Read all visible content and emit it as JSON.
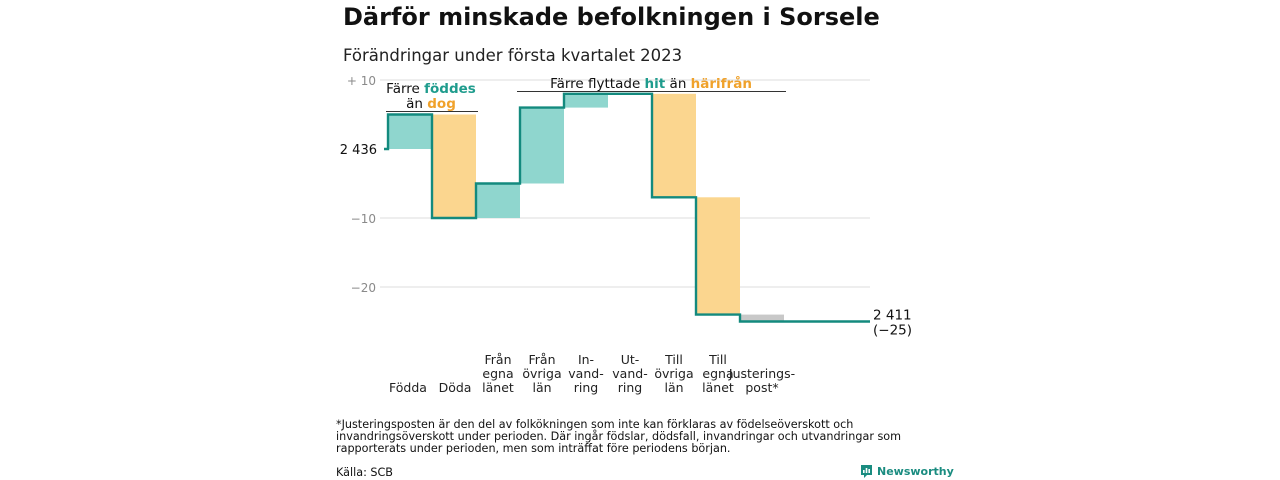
{
  "title": "Därför minskade befolkningen i Sorsele",
  "subtitle": "Förändringar under första kvartalet 2023",
  "footnote": "*Justeringsposten är den del av folkökningen som inte kan förklaras av födelseöverskott och invandringsöverskott under perioden. Där ingår födslar, dödsfall, invandringar och utvandringar som rapporterats under perioden, men som inträffat före periodens början.",
  "source": "Källa: SCB",
  "brand": "Newsworthy",
  "colors": {
    "positive": "#8fd6ce",
    "negative": "#fbd68f",
    "adjustment": "#c8c8c8",
    "line": "#138a7e",
    "teal_text": "#1f9c8d",
    "orange_text": "#f0a22b"
  },
  "chart_data": {
    "type": "waterfall",
    "start_value": 2436,
    "start_label": "2 436",
    "end_value": 2411,
    "end_label": "2 411",
    "end_change_label": "(−25)",
    "ylim": [
      -25,
      10
    ],
    "ytick_values": [
      10,
      0,
      -10,
      -20
    ],
    "ytick_labels": [
      "+ 10",
      "2 436",
      "−10",
      "−20"
    ],
    "categories": [
      {
        "label": [
          "Födda"
        ],
        "value": 5
      },
      {
        "label": [
          "Döda"
        ],
        "value": -15
      },
      {
        "label": [
          "Från",
          "egna",
          "länet"
        ],
        "value": 5
      },
      {
        "label": [
          "Från",
          "övriga",
          "län"
        ],
        "value": 11
      },
      {
        "label": [
          "In-",
          "vand-",
          "ring"
        ],
        "value": 2
      },
      {
        "label": [
          "Ut-",
          "vand-",
          "ring"
        ],
        "value": 0
      },
      {
        "label": [
          "Till",
          "övriga",
          "län"
        ],
        "value": -15
      },
      {
        "label": [
          "Till",
          "egna",
          "länet"
        ],
        "value": -17
      },
      {
        "label": [
          "Justerings-",
          "post*"
        ],
        "value": -1
      }
    ],
    "annotations": [
      {
        "parts": [
          {
            "text": "Färre ",
            "tone": "normal"
          },
          {
            "text": "föddes",
            "tone": "teal"
          }
        ],
        "parts2": [
          {
            "text": "än ",
            "tone": "normal"
          },
          {
            "text": "dog",
            "tone": "orange"
          }
        ]
      },
      {
        "parts": [
          {
            "text": "Färre flyttade ",
            "tone": "normal"
          },
          {
            "text": "hit",
            "tone": "teal"
          },
          {
            "text": " än ",
            "tone": "normal"
          },
          {
            "text": "härifrån",
            "tone": "orange"
          }
        ]
      }
    ]
  }
}
